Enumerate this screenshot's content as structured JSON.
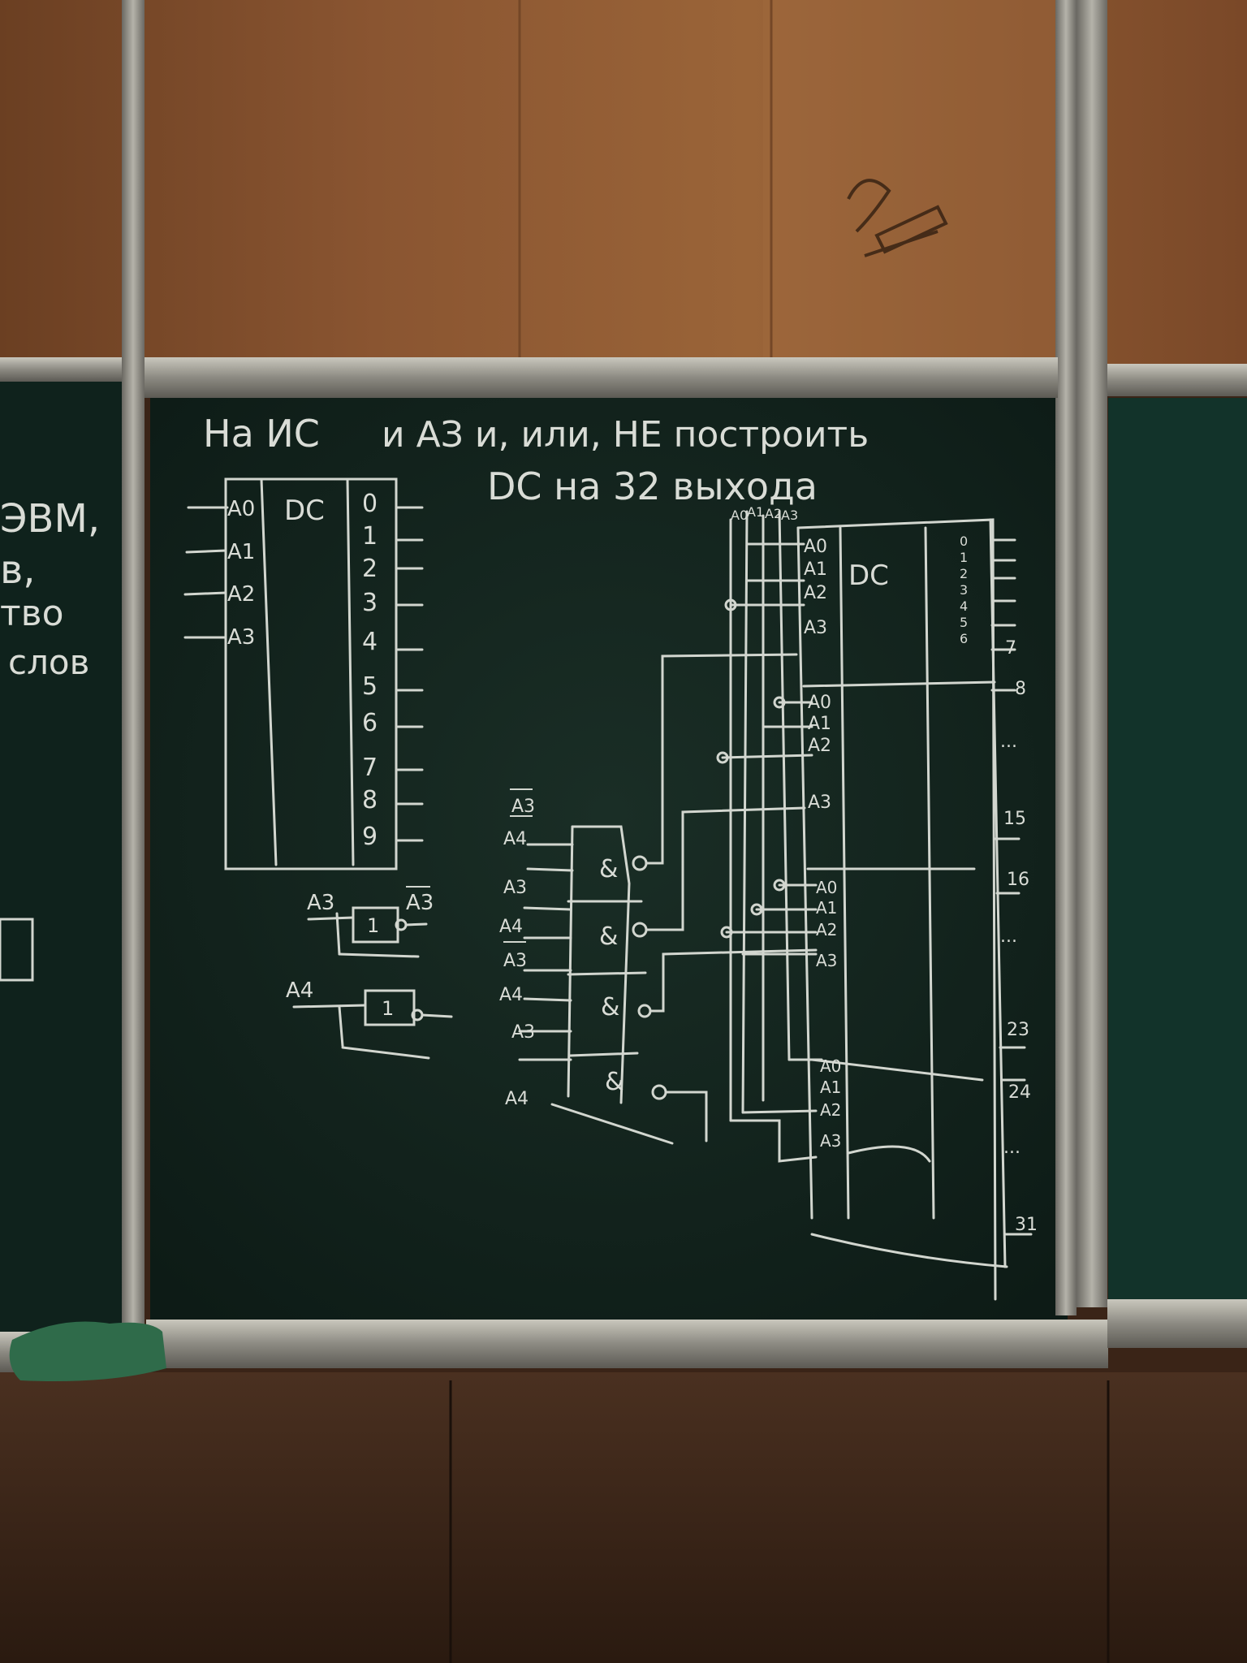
{
  "board": {
    "title_line1": "На ИС",
    "title_line1_rest": "и АЗ и, или, НЕ построить",
    "title_line2": "DC на 32 выхода",
    "side_board_words": [
      "ЭВМ,",
      "в,",
      "тво",
      "слов"
    ]
  },
  "left_decoder": {
    "label": "DC",
    "inputs": [
      "A0",
      "A1",
      "A2",
      "A3"
    ],
    "outputs": [
      "0",
      "1",
      "2",
      "3",
      "4",
      "5",
      "6",
      "7",
      "8",
      "9"
    ]
  },
  "inverters": {
    "inv1_in": "A3",
    "inv1_out": "A3",
    "inv1_symbol": "1",
    "inv2_in": "A4",
    "inv2_symbol": "1"
  },
  "and_gates": {
    "inputs": [
      "A3",
      "A4",
      "A3",
      "A4",
      "A3",
      "A4",
      "A3",
      "A4"
    ],
    "symbols": [
      "&",
      "&",
      "&",
      "&"
    ]
  },
  "right_decoder": {
    "label": "DC",
    "top_inputs": [
      "A0",
      "A1",
      "A2",
      "A3"
    ],
    "sections": [
      {
        "inputs": [
          "A0",
          "A1",
          "A2",
          "A3"
        ],
        "outputs": [
          "0",
          "1",
          "2",
          "3",
          "4",
          "5",
          "6",
          "7"
        ]
      },
      {
        "inputs": [
          "A0",
          "A1",
          "A2",
          "A3"
        ],
        "outputs": [
          "8",
          "...",
          "15"
        ]
      },
      {
        "inputs": [
          "A0",
          "A1",
          "A2",
          "A3"
        ],
        "outputs": [
          "16",
          "...",
          "23"
        ]
      },
      {
        "inputs": [
          "A0",
          "A1",
          "A2",
          "A3"
        ],
        "outputs": [
          "24",
          "...",
          "31"
        ]
      }
    ]
  },
  "colors": {
    "board": "#13231d",
    "chalk": "#d9dcd6",
    "frame": "#9a9890",
    "wood_upper": "#7a4a2a",
    "wood_lower": "#3b2619",
    "cloth": "#2f6b4a"
  }
}
